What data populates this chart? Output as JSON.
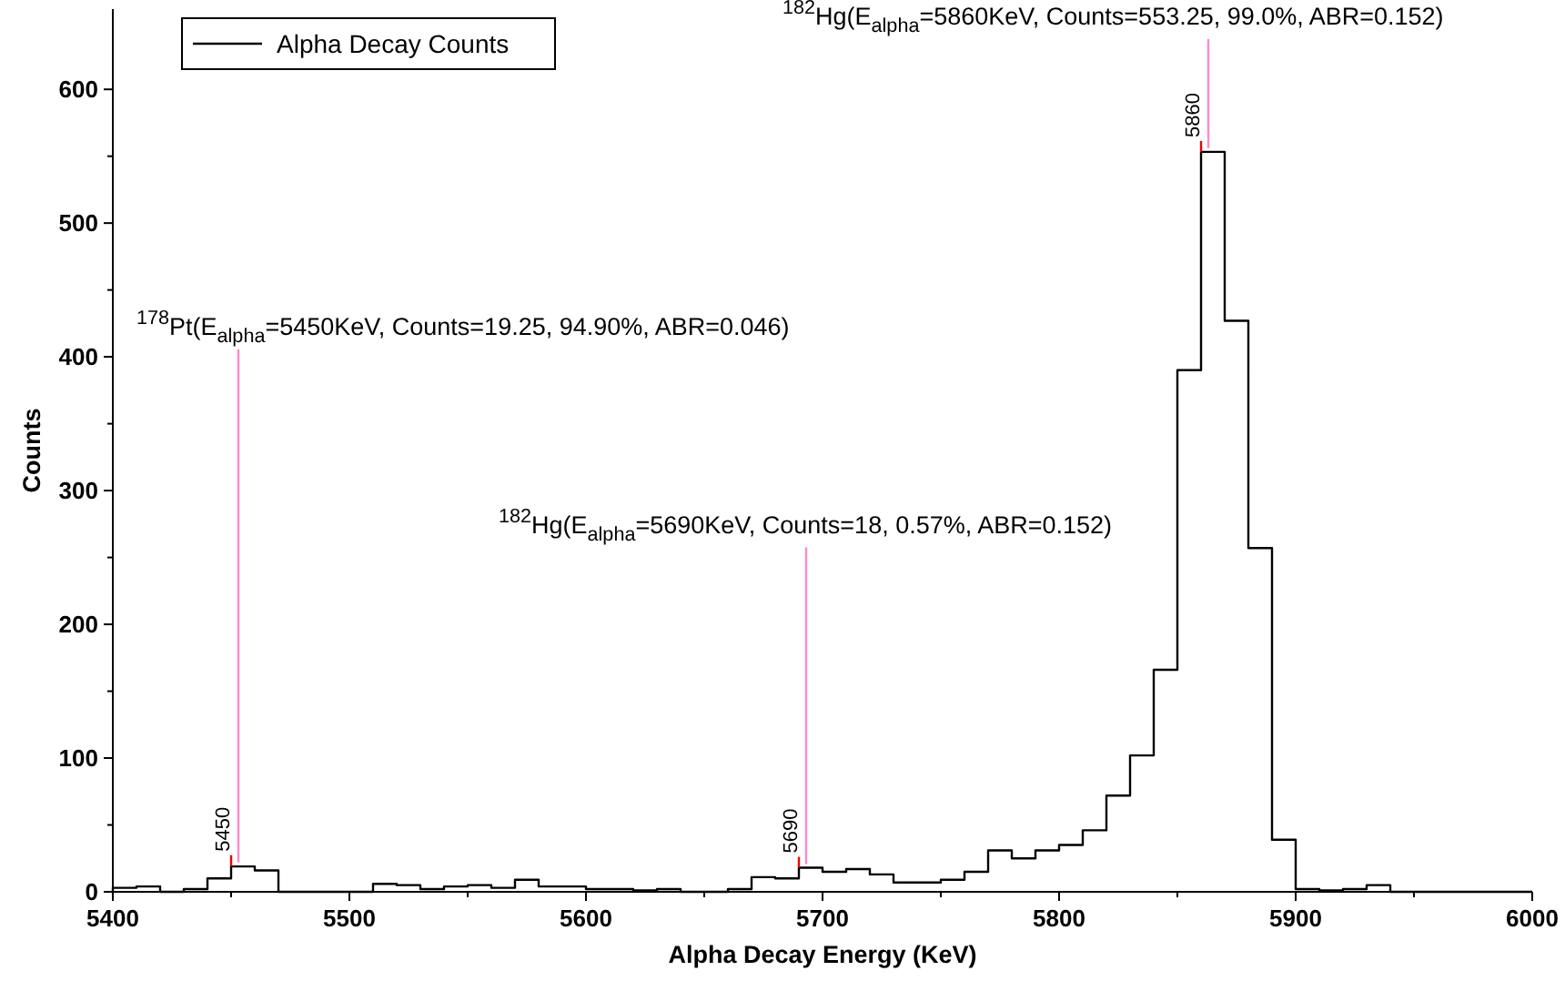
{
  "chart_data": {
    "type": "histogram",
    "xlabel": "Alpha Decay Energy (KeV)",
    "ylabel": "Counts",
    "bins": [
      5400,
      5410,
      5420,
      5430,
      5440,
      5450,
      5460,
      5470,
      5480,
      5490,
      5500,
      5510,
      5520,
      5530,
      5540,
      5550,
      5560,
      5570,
      5580,
      5590,
      5600,
      5610,
      5620,
      5630,
      5640,
      5650,
      5660,
      5670,
      5680,
      5690,
      5700,
      5710,
      5720,
      5730,
      5740,
      5750,
      5760,
      5770,
      5780,
      5790,
      5800,
      5810,
      5820,
      5830,
      5840,
      5850,
      5860,
      5870,
      5880,
      5890,
      5900,
      5910,
      5920,
      5930,
      5940,
      5950,
      5960,
      5970,
      5980,
      5990,
      6000
    ],
    "series": [
      {
        "name": "Alpha Decay Counts",
        "color": "#000000",
        "values": [
          3,
          4,
          0,
          2,
          10,
          19,
          16,
          0,
          0,
          0,
          0,
          6,
          5,
          2,
          4,
          5,
          3,
          9,
          4,
          4,
          2,
          2,
          1,
          2,
          0,
          0,
          2,
          11,
          10,
          18,
          15,
          17,
          13,
          7,
          7,
          9,
          15,
          31,
          25,
          31,
          35,
          46,
          72,
          102,
          166,
          390,
          553.25,
          427,
          257,
          39,
          2,
          1,
          2,
          5,
          0,
          0,
          0,
          0,
          0,
          0
        ]
      }
    ],
    "xlim": [
      5400,
      6000
    ],
    "ylim": [
      0,
      660
    ],
    "xticks": [
      5400,
      {
        "value": 5450,
        "label": null
      },
      5500,
      {
        "value": 5550,
        "label": null
      },
      5600,
      {
        "value": 5650,
        "label": null
      },
      5700,
      {
        "value": 5750,
        "label": null
      },
      5800,
      {
        "value": 5850,
        "label": null
      },
      5900,
      {
        "value": 5950,
        "label": null
      },
      6000
    ],
    "yticks": [
      0,
      {
        "value": 50,
        "label": null
      },
      100,
      {
        "value": 150,
        "label": null
      },
      200,
      {
        "value": 250,
        "label": null
      },
      300,
      {
        "value": 350,
        "label": null
      },
      400,
      {
        "value": 450,
        "label": null
      },
      500,
      {
        "value": 550,
        "label": null
      },
      600
    ],
    "legend": "top left",
    "grid": false,
    "annotations": [
      {
        "text": "$^{178}$Pt(E$_{alpha}$=5450KeV, Counts=19.25, 94.90%, ABR=0.046)",
        "x": 5450,
        "y": 19.25
      },
      {
        "text": "$^{182}$Hg(E$_{alpha}$=5690KeV, Counts=18, 0.57%, ABR=0.152)",
        "x": 5690,
        "y": 18
      },
      {
        "text": "$^{182}$Hg(E$_{alpha}$=5860KeV, Counts=553.25, 99.0%, ABR=0.152)",
        "x": 5860,
        "y": 553.25
      },
      {
        "text": "5450",
        "x": 5450,
        "y": 19.25
      },
      {
        "text": "5690",
        "x": 5690,
        "y": 18
      },
      {
        "text": "5860",
        "x": 5860,
        "y": 553.25
      }
    ]
  }
}
